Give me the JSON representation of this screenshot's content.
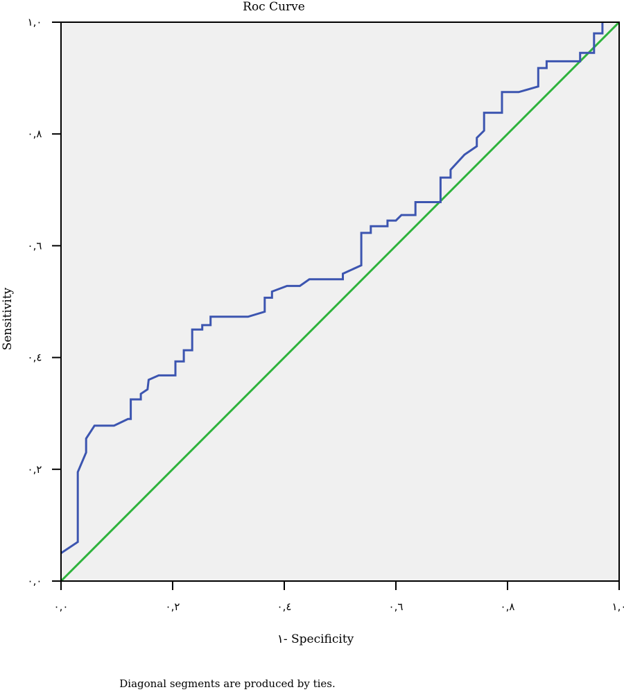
{
  "chart_data": {
    "type": "line",
    "title": "Roc Curve",
    "xlabel": "١- Specificity",
    "ylabel": "Sensitivity",
    "footnote": "Diagonal segments are produced by ties.",
    "xlim": [
      0,
      1
    ],
    "ylim": [
      0,
      1
    ],
    "grid": false,
    "x_ticks": [
      {
        "value": 0.0,
        "label": "٠,٠"
      },
      {
        "value": 0.2,
        "label": "٠,٢"
      },
      {
        "value": 0.4,
        "label": "٠,٤"
      },
      {
        "value": 0.6,
        "label": "٠,٦"
      },
      {
        "value": 0.8,
        "label": "٠,٨"
      },
      {
        "value": 1.0,
        "label": "١,٠"
      }
    ],
    "y_ticks": [
      {
        "value": 0.0,
        "label": "٠,٠"
      },
      {
        "value": 0.2,
        "label": "٠,٢"
      },
      {
        "value": 0.4,
        "label": "٠,٤"
      },
      {
        "value": 0.6,
        "label": "٠,٦"
      },
      {
        "value": 0.8,
        "label": "٠,٨"
      },
      {
        "value": 1.0,
        "label": "١,٠"
      }
    ],
    "series": [
      {
        "color": "#3c55b0",
        "points": [
          [
            0.0,
            0.05
          ],
          [
            0.03,
            0.07
          ],
          [
            0.03,
            0.195
          ],
          [
            0.045,
            0.23
          ],
          [
            0.045,
            0.255
          ],
          [
            0.06,
            0.278
          ],
          [
            0.095,
            0.278
          ],
          [
            0.12,
            0.29
          ],
          [
            0.125,
            0.29
          ],
          [
            0.125,
            0.325
          ],
          [
            0.143,
            0.325
          ],
          [
            0.143,
            0.335
          ],
          [
            0.155,
            0.343
          ],
          [
            0.157,
            0.36
          ],
          [
            0.175,
            0.368
          ],
          [
            0.205,
            0.368
          ],
          [
            0.205,
            0.393
          ],
          [
            0.22,
            0.393
          ],
          [
            0.22,
            0.413
          ],
          [
            0.235,
            0.413
          ],
          [
            0.235,
            0.45
          ],
          [
            0.253,
            0.45
          ],
          [
            0.253,
            0.458
          ],
          [
            0.268,
            0.458
          ],
          [
            0.268,
            0.473
          ],
          [
            0.335,
            0.473
          ],
          [
            0.365,
            0.482
          ],
          [
            0.365,
            0.507
          ],
          [
            0.378,
            0.507
          ],
          [
            0.378,
            0.518
          ],
          [
            0.405,
            0.528
          ],
          [
            0.428,
            0.528
          ],
          [
            0.445,
            0.54
          ],
          [
            0.505,
            0.54
          ],
          [
            0.505,
            0.55
          ],
          [
            0.538,
            0.565
          ],
          [
            0.538,
            0.623
          ],
          [
            0.555,
            0.623
          ],
          [
            0.555,
            0.635
          ],
          [
            0.585,
            0.635
          ],
          [
            0.585,
            0.645
          ],
          [
            0.6,
            0.645
          ],
          [
            0.61,
            0.655
          ],
          [
            0.635,
            0.655
          ],
          [
            0.635,
            0.678
          ],
          [
            0.68,
            0.678
          ],
          [
            0.68,
            0.722
          ],
          [
            0.698,
            0.722
          ],
          [
            0.698,
            0.736
          ],
          [
            0.723,
            0.763
          ],
          [
            0.745,
            0.778
          ],
          [
            0.745,
            0.793
          ],
          [
            0.758,
            0.806
          ],
          [
            0.758,
            0.838
          ],
          [
            0.79,
            0.838
          ],
          [
            0.79,
            0.875
          ],
          [
            0.82,
            0.875
          ],
          [
            0.855,
            0.885
          ],
          [
            0.855,
            0.918
          ],
          [
            0.87,
            0.918
          ],
          [
            0.87,
            0.93
          ],
          [
            0.895,
            0.93
          ],
          [
            0.93,
            0.93
          ],
          [
            0.93,
            0.945
          ],
          [
            0.955,
            0.945
          ],
          [
            0.955,
            0.98
          ],
          [
            0.97,
            0.98
          ],
          [
            0.97,
            1.0
          ]
        ]
      },
      {
        "color": "#2eb33c",
        "points": [
          [
            0.0,
            0.0
          ],
          [
            1.0,
            1.0
          ]
        ]
      }
    ]
  }
}
